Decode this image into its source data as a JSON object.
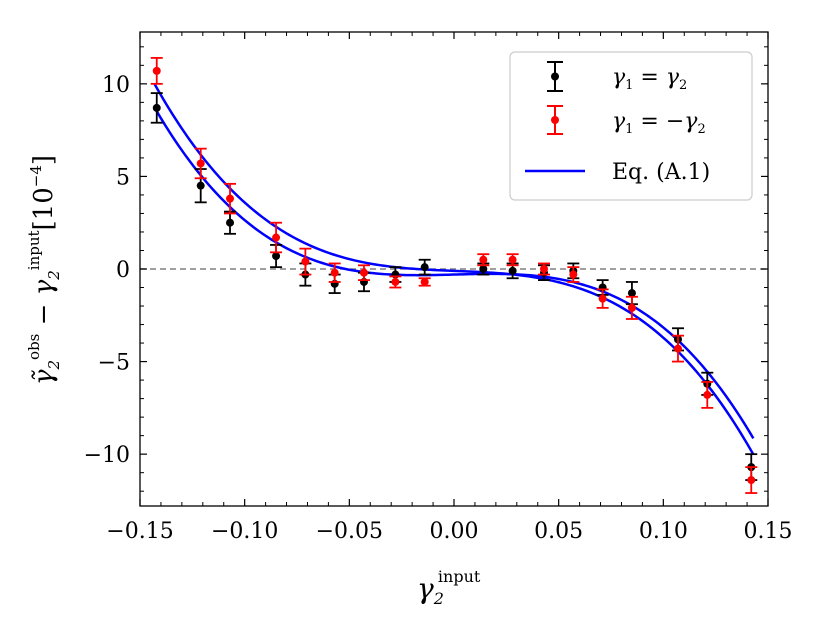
{
  "chart_data": {
    "type": "scatter",
    "xlabel": "γ2^input",
    "ylabel": "γ̃2^obs − γ2^input [10^−4]",
    "xlim": [
      -0.15,
      0.15
    ],
    "ylim": [
      -12.8,
      12.8
    ],
    "x_ticks": [
      -0.15,
      -0.1,
      -0.05,
      0.0,
      0.05,
      0.1,
      0.15
    ],
    "x_tick_labels": [
      "−0.15",
      "−0.10",
      "−0.05",
      "0.00",
      "0.05",
      "0.10",
      "0.15"
    ],
    "y_ticks": [
      -10,
      -5,
      0,
      5,
      10
    ],
    "y_tick_labels": [
      "−10",
      "−5",
      "0",
      "5",
      "10"
    ],
    "ylabel_parts": {
      "main": "γ̃",
      "sub1": "2",
      "sup1": "obs",
      "minus": " − γ",
      "sub2": "2",
      "sup2": "input",
      "bracket": "[10",
      "exp": "−4",
      "close": "]"
    },
    "xlabel_parts": {
      "main": "γ",
      "sub": "2",
      "sup": "input"
    },
    "reference_line": {
      "y": 0,
      "style": "dashed",
      "color": "#808080"
    },
    "legend": {
      "placement": "top-right",
      "entries": [
        {
          "label": "γ1 = γ2",
          "color": "#000000",
          "kind": "errorbar"
        },
        {
          "label": "γ1 = −γ2",
          "color": "#ff0000",
          "kind": "errorbar"
        },
        {
          "label": "Eq. (A.1)",
          "color": "#0000ff",
          "kind": "line"
        }
      ],
      "label_parts": [
        {
          "a": "γ",
          "as": "1",
          "op": " = ",
          "b": "γ",
          "bs": "2"
        },
        {
          "a": "γ",
          "as": "1",
          "op": " = −",
          "b": "γ",
          "bs": "2"
        },
        {
          "text": "Eq. (A.1)"
        }
      ]
    },
    "series": [
      {
        "name": "γ1 = γ2",
        "color": "#000000",
        "x": [
          -0.142,
          -0.121,
          -0.107,
          -0.085,
          -0.071,
          -0.057,
          -0.043,
          -0.028,
          -0.014,
          0.014,
          0.028,
          0.043,
          0.057,
          0.071,
          0.085,
          0.107,
          0.121,
          0.142
        ],
        "y": [
          8.7,
          4.5,
          2.5,
          0.7,
          -0.3,
          -0.8,
          -0.7,
          -0.3,
          0.1,
          0.0,
          -0.1,
          -0.2,
          -0.1,
          -1.0,
          -1.3,
          -3.8,
          -6.2,
          -10.7
        ],
        "yerr": [
          0.8,
          0.9,
          0.6,
          0.6,
          0.6,
          0.5,
          0.5,
          0.4,
          0.4,
          0.3,
          0.4,
          0.4,
          0.4,
          0.4,
          0.6,
          0.6,
          0.6,
          0.7
        ]
      },
      {
        "name": "γ1 = −γ2",
        "color": "#ff0000",
        "x": [
          -0.142,
          -0.121,
          -0.107,
          -0.085,
          -0.071,
          -0.057,
          -0.043,
          -0.028,
          -0.014,
          0.014,
          0.028,
          0.043,
          0.057,
          0.071,
          0.085,
          0.107,
          0.121,
          0.142
        ],
        "y": [
          10.7,
          5.7,
          3.8,
          1.7,
          0.4,
          -0.2,
          -0.2,
          -0.7,
          -0.7,
          0.5,
          0.5,
          0.0,
          -0.3,
          -1.6,
          -2.1,
          -4.3,
          -6.8,
          -11.4
        ],
        "yerr": [
          0.7,
          0.8,
          0.8,
          0.8,
          0.7,
          0.5,
          0.4,
          0.3,
          0.2,
          0.3,
          0.3,
          0.3,
          0.4,
          0.5,
          0.6,
          0.7,
          0.7,
          0.7
        ]
      }
    ],
    "fit_curves": [
      {
        "name": "Eq. (A.1)",
        "color": "#0000ff",
        "coef": [
          -0.3,
          3.0,
          4.0,
          -3200
        ]
      },
      {
        "name": "Eq. (A.1)",
        "color": "#0000ff",
        "coef": [
          -0.1,
          -4.5,
          4.0,
          -3200
        ]
      }
    ]
  }
}
